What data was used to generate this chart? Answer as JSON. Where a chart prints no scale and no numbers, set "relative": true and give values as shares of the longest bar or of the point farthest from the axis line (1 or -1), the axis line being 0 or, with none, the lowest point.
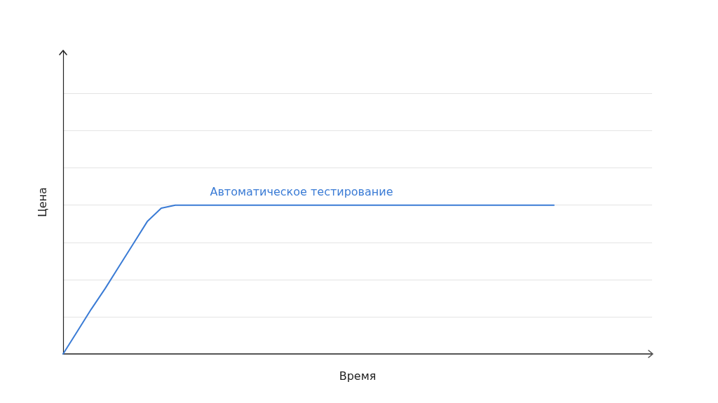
{
  "chart_data": {
    "type": "line",
    "relative": true,
    "xlabel": "Время",
    "ylabel": "Цена",
    "grid": "y",
    "legend": false,
    "categories": [
      null,
      null,
      null,
      null,
      null,
      null,
      null,
      null,
      null,
      null,
      null,
      null,
      null,
      null,
      null,
      null,
      null,
      null,
      null,
      null,
      null,
      null,
      null,
      null,
      null,
      null,
      null,
      null,
      null,
      null,
      null,
      null,
      null,
      null,
      null,
      null,
      null,
      null,
      null,
      null,
      null,
      null,
      null
    ],
    "series": [
      {
        "name": "Автоматическое тестирование",
        "color": "#3a7bd5",
        "values": [
          0,
          0.15,
          0.3,
          0.44,
          0.59,
          0.74,
          0.89,
          0.98,
          1,
          1,
          1,
          1,
          1,
          1,
          1,
          1,
          1,
          1,
          1,
          1,
          1,
          1,
          1,
          1,
          1,
          1,
          1,
          1,
          1,
          1,
          1,
          1,
          1,
          1,
          1,
          1,
          null,
          null,
          null,
          null,
          null,
          null,
          null
        ]
      }
    ]
  }
}
